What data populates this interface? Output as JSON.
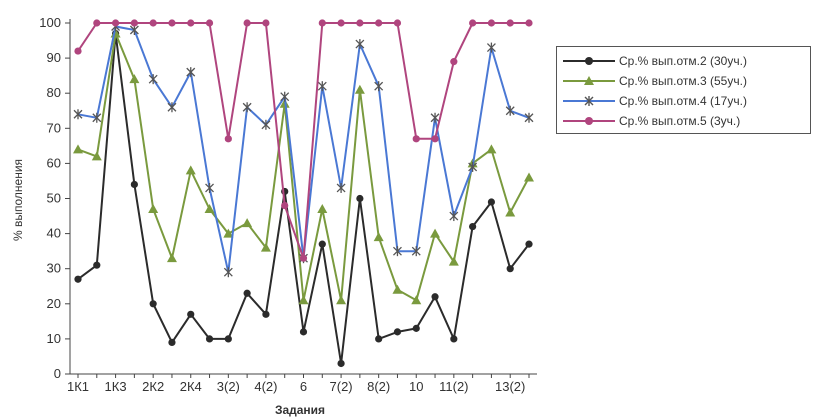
{
  "chart_data": {
    "type": "line",
    "xlabel": "Задания",
    "ylabel": "% выполнения",
    "ylim": [
      0,
      100
    ],
    "yticks": [
      0,
      10,
      20,
      30,
      40,
      50,
      60,
      70,
      80,
      90,
      100
    ],
    "grid": false,
    "legend_position": "right",
    "x_tick_labels": [
      {
        "index": 0,
        "label": "1К1"
      },
      {
        "index": 2,
        "label": "1К3"
      },
      {
        "index": 4,
        "label": "2К2"
      },
      {
        "index": 6,
        "label": "2К4"
      },
      {
        "index": 8,
        "label": "3(2)"
      },
      {
        "index": 10,
        "label": "4(2)"
      },
      {
        "index": 12,
        "label": "6"
      },
      {
        "index": 14,
        "label": "7(2)"
      },
      {
        "index": 16,
        "label": "8(2)"
      },
      {
        "index": 18,
        "label": "10"
      },
      {
        "index": 20,
        "label": "11(2)"
      },
      {
        "index": 23,
        "label": "13(2)"
      }
    ],
    "n_points": 25,
    "series": [
      {
        "name": "Ср.% вып.отм.2 (30уч.)",
        "color": "#2b2b2b",
        "marker": "circle",
        "values": [
          27,
          31,
          97,
          54,
          20,
          9,
          17,
          10,
          10,
          23,
          17,
          52,
          12,
          37,
          3,
          50,
          10,
          12,
          13,
          22,
          10,
          42,
          49,
          30,
          37
        ]
      },
      {
        "name": "Ср.% вып.отм.3 (55уч.)",
        "color": "#7a9a3e",
        "marker": "triangle",
        "values": [
          64,
          62,
          97,
          84,
          47,
          33,
          58,
          47,
          40,
          43,
          36,
          77,
          21,
          47,
          21,
          81,
          39,
          24,
          21,
          40,
          32,
          60,
          64,
          46,
          56
        ]
      },
      {
        "name": "Ср.% вып.отм.4 (17уч.)",
        "color": "#4a78d4",
        "marker": "star",
        "values": [
          74,
          73,
          99,
          98,
          84,
          76,
          86,
          53,
          29,
          76,
          71,
          79,
          33,
          82,
          53,
          94,
          82,
          35,
          35,
          73,
          45,
          59,
          93,
          75,
          73
        ]
      },
      {
        "name": "Ср.% вып.отм.5 (3уч.)",
        "color": "#b0457e",
        "marker": "circle",
        "values": [
          92,
          100,
          100,
          100,
          100,
          100,
          100,
          100,
          67,
          100,
          100,
          48,
          33,
          100,
          100,
          100,
          100,
          100,
          67,
          67,
          89,
          100,
          100,
          100,
          100
        ]
      }
    ]
  }
}
